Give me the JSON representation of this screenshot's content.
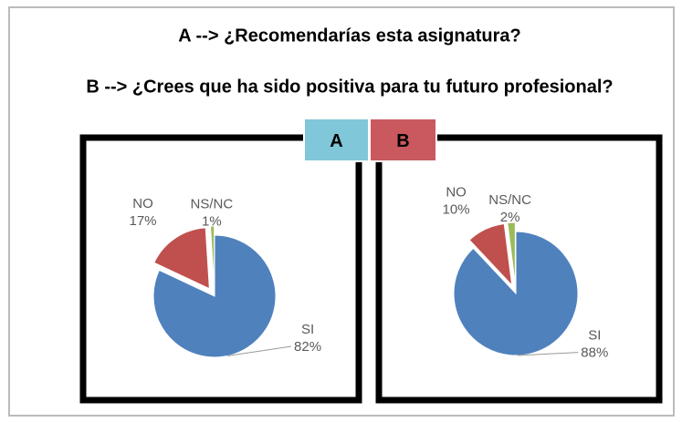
{
  "header": {
    "line_a": "A --> ¿Recomendarías esta asignatura?",
    "line_b": "B --> ¿Crees que ha sido positiva para tu futuro profesional?"
  },
  "chart_data": [
    {
      "type": "pie",
      "title": "A",
      "categories": [
        "SI",
        "NO",
        "NS/NC"
      ],
      "values": [
        82,
        17,
        1
      ],
      "value_labels": [
        "82%",
        "17%",
        "1%"
      ],
      "colors": [
        "#4f81bd",
        "#c0504d",
        "#9bbb59"
      ]
    },
    {
      "type": "pie",
      "title": "B",
      "categories": [
        "SI",
        "NO",
        "NS/NC"
      ],
      "values": [
        88,
        10,
        2
      ],
      "value_labels": [
        "88%",
        "10%",
        "2%"
      ],
      "colors": [
        "#4f81bd",
        "#c0504d",
        "#9bbb59"
      ]
    }
  ]
}
